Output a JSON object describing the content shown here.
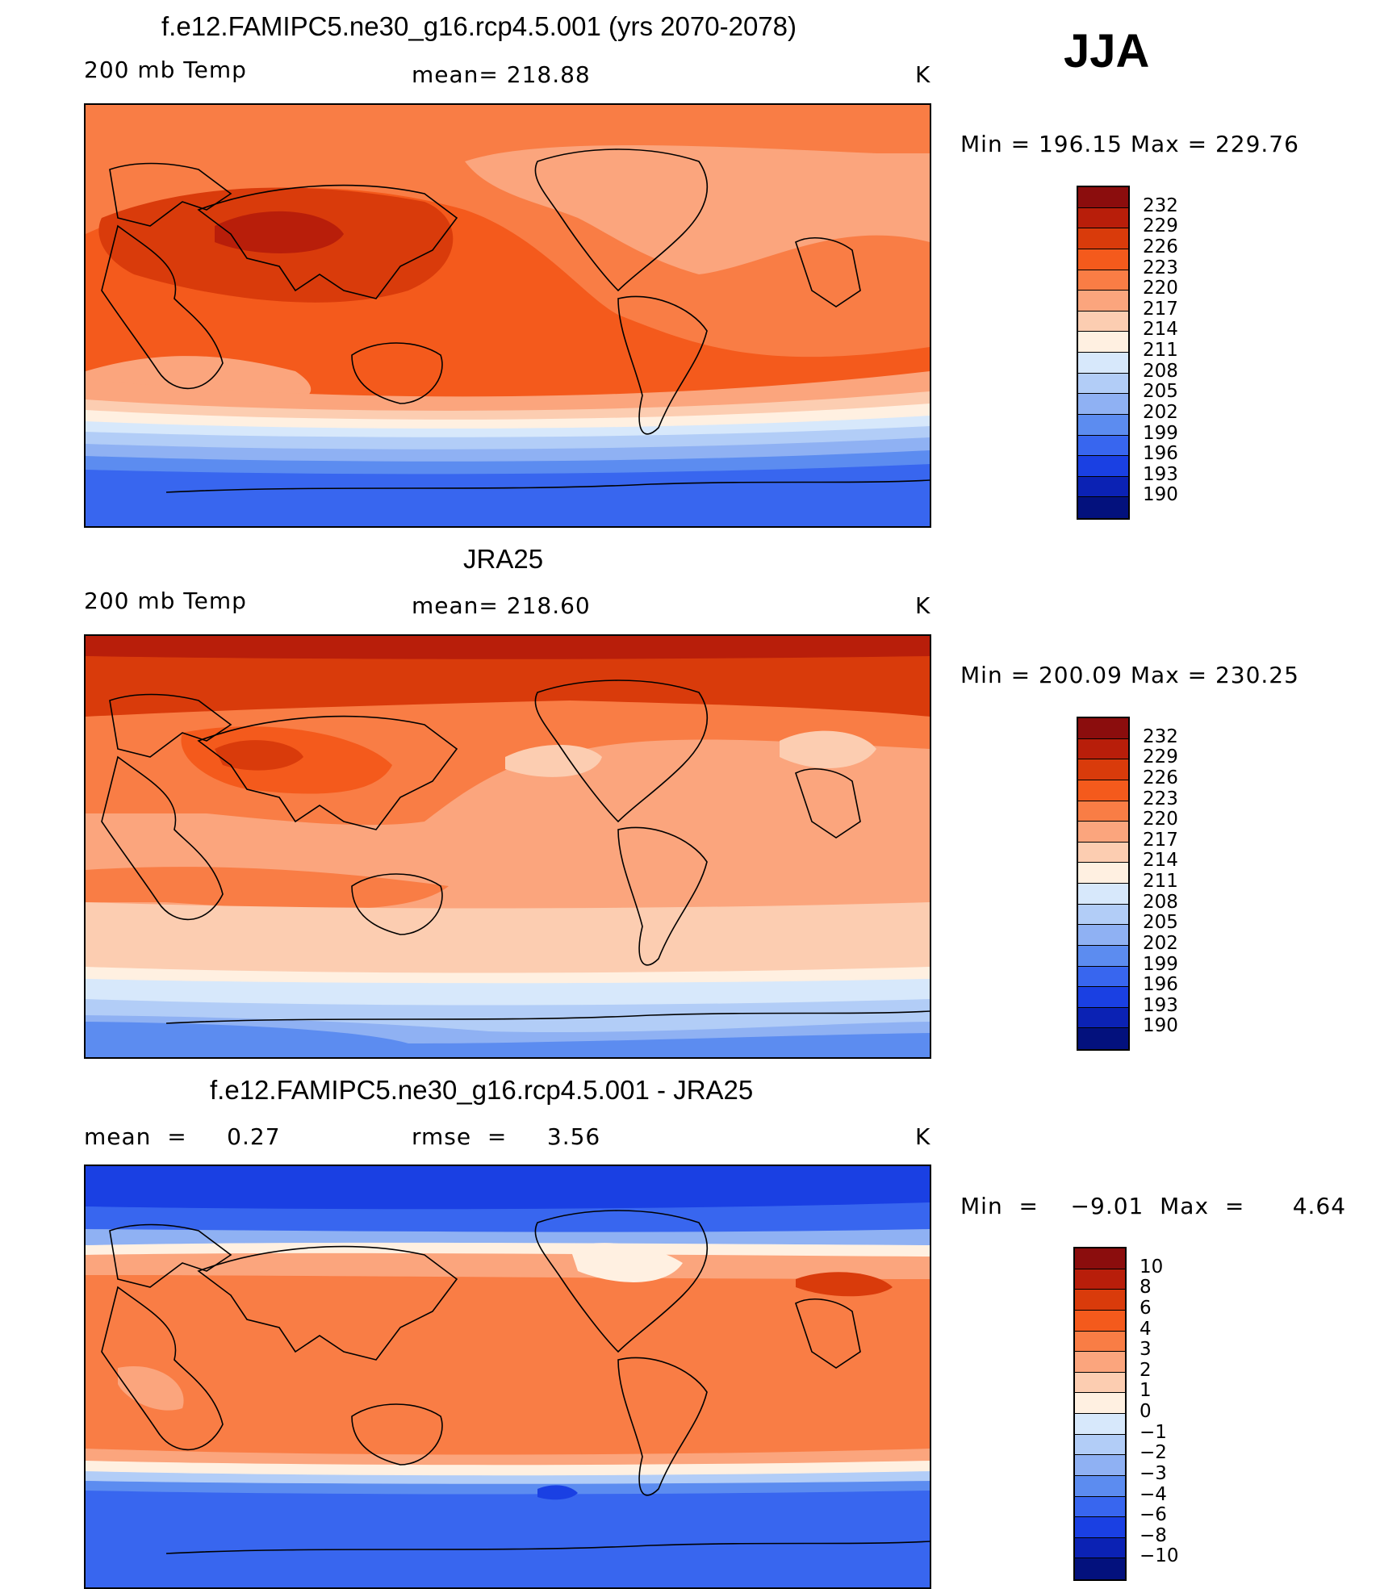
{
  "season": "JJA",
  "panels": [
    {
      "title": "f.e12.FAMIPC5.ne30_g16.rcp4.5.001 (yrs 2070-2078)",
      "left_label": "200 mb Temp",
      "center_label": "mean=  218.88",
      "units": "K",
      "minmax": "Min  =  196.15  Max  =  229.76",
      "colorbar_labels": [
        "232",
        "229",
        "226",
        "223",
        "220",
        "217",
        "214",
        "211",
        "208",
        "205",
        "202",
        "199",
        "196",
        "193",
        "190"
      ],
      "colorbar_colors": [
        "#8b0d0d",
        "#b81e0a",
        "#d93b0b",
        "#f45a1c",
        "#f97d45",
        "#fba57d",
        "#fccdb1",
        "#fff0e1",
        "#d7e8fb",
        "#b2cdf7",
        "#8fb1f3",
        "#5c8cf0",
        "#3866ef",
        "#1a40e3",
        "#0b22b4",
        "#03117d"
      ]
    },
    {
      "title": "JRA25",
      "left_label": "200 mb Temp",
      "center_label": "mean=  218.60",
      "units": "K",
      "minmax": "Min  =  200.09  Max  =  230.25",
      "colorbar_labels": [
        "232",
        "229",
        "226",
        "223",
        "220",
        "217",
        "214",
        "211",
        "208",
        "205",
        "202",
        "199",
        "196",
        "193",
        "190"
      ],
      "colorbar_colors": [
        "#8b0d0d",
        "#b81e0a",
        "#d93b0b",
        "#f45a1c",
        "#f97d45",
        "#fba57d",
        "#fccdb1",
        "#fff0e1",
        "#d7e8fb",
        "#b2cdf7",
        "#8fb1f3",
        "#5c8cf0",
        "#3866ef",
        "#1a40e3",
        "#0b22b4",
        "#03117d"
      ]
    },
    {
      "title": "f.e12.FAMIPC5.ne30_g16.rcp4.5.001 - JRA25",
      "left_label": "mean  =     0.27",
      "center_label": "rmse  =     3.56",
      "units": "K",
      "minmax": "Min  =    −9.01  Max  =      4.64",
      "colorbar_labels": [
        "10",
        "8",
        "6",
        "4",
        "3",
        "2",
        "1",
        "0",
        "−1",
        "−2",
        "−3",
        "−4",
        "−6",
        "−8",
        "−10"
      ],
      "colorbar_colors": [
        "#8b0d0d",
        "#b81e0a",
        "#d93b0b",
        "#f45a1c",
        "#f97d45",
        "#fba57d",
        "#fccdb1",
        "#fff0e1",
        "#d7e8fb",
        "#b2cdf7",
        "#8fb1f3",
        "#5c8cf0",
        "#3866ef",
        "#1a40e3",
        "#0b22b4",
        "#03117d"
      ]
    }
  ]
}
